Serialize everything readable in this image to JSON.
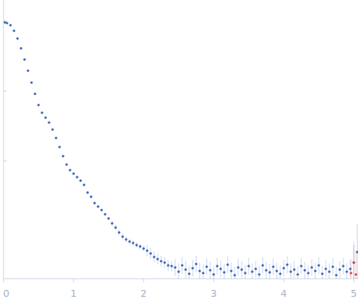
{
  "chart_data": {
    "type": "scatter",
    "xlim": [
      0,
      5.06
    ],
    "xticks": [
      0,
      1,
      2,
      3,
      4,
      5
    ],
    "ylim": [
      -0.68,
      3.3
    ],
    "yticks": [
      1,
      2,
      3
    ],
    "tick_labels": "x",
    "grid": false,
    "series": [
      {
        "color": "#3a66b8",
        "marker": "circle",
        "x": [
          0.02,
          0.05,
          0.1,
          0.15,
          0.2,
          0.25,
          0.3,
          0.35,
          0.4,
          0.45,
          0.5,
          0.55,
          0.6,
          0.65,
          0.7,
          0.75,
          0.8,
          0.85,
          0.9,
          0.95,
          1.0,
          1.05,
          1.1,
          1.15,
          1.2,
          1.25,
          1.3,
          1.35,
          1.4,
          1.45,
          1.5,
          1.55,
          1.6,
          1.65,
          1.7,
          1.75,
          1.8,
          1.85,
          1.9,
          1.95,
          2.0,
          2.05,
          2.1,
          2.15,
          2.2,
          2.25,
          2.3,
          2.35,
          2.4,
          2.45,
          2.5,
          2.55,
          2.6,
          2.65,
          2.7,
          2.75,
          2.8,
          2.85,
          2.9,
          2.95,
          3.0,
          3.05,
          3.1,
          3.15,
          3.2,
          3.25,
          3.3,
          3.35,
          3.4,
          3.45,
          3.5,
          3.55,
          3.6,
          3.65,
          3.7,
          3.75,
          3.8,
          3.85,
          3.9,
          3.95,
          4.0,
          4.05,
          4.1,
          4.15,
          4.2,
          4.25,
          4.3,
          4.35,
          4.4,
          4.45,
          4.5,
          4.55,
          4.6,
          4.65,
          4.7,
          4.75,
          4.8,
          4.85,
          4.9,
          4.95,
          5.0,
          5.05
        ],
        "values": [
          2.98,
          2.97,
          2.94,
          2.86,
          2.75,
          2.61,
          2.45,
          2.29,
          2.12,
          1.96,
          1.8,
          1.69,
          1.62,
          1.55,
          1.45,
          1.33,
          1.2,
          1.07,
          0.95,
          0.87,
          0.82,
          0.77,
          0.72,
          0.66,
          0.55,
          0.49,
          0.4,
          0.35,
          0.3,
          0.24,
          0.18,
          0.11,
          0.05,
          -0.02,
          -0.08,
          -0.12,
          -0.15,
          -0.17,
          -0.2,
          -0.22,
          -0.25,
          -0.28,
          -0.32,
          -0.37,
          -0.4,
          -0.43,
          -0.45,
          -0.49,
          -0.5,
          -0.52,
          -0.58,
          -0.49,
          -0.55,
          -0.61,
          -0.53,
          -0.47,
          -0.57,
          -0.6,
          -0.51,
          -0.56,
          -0.62,
          -0.5,
          -0.54,
          -0.59,
          -0.48,
          -0.57,
          -0.63,
          -0.52,
          -0.55,
          -0.6,
          -0.5,
          -0.58,
          -0.54,
          -0.62,
          -0.49,
          -0.56,
          -0.59,
          -0.51,
          -0.57,
          -0.61,
          -0.53,
          -0.48,
          -0.58,
          -0.55,
          -0.62,
          -0.5,
          -0.56,
          -0.6,
          -0.52,
          -0.57,
          -0.49,
          -0.61,
          -0.54,
          -0.58,
          -0.51,
          -0.63,
          -0.55,
          -0.5,
          -0.58,
          -0.54,
          -0.45,
          -0.3
        ],
        "errors": [
          0.01,
          0.01,
          0.01,
          0.01,
          0.01,
          0.01,
          0.01,
          0.01,
          0.01,
          0.01,
          0.01,
          0.01,
          0.01,
          0.01,
          0.01,
          0.01,
          0.01,
          0.01,
          0.01,
          0.01,
          0.01,
          0.02,
          0.02,
          0.02,
          0.02,
          0.02,
          0.02,
          0.02,
          0.02,
          0.02,
          0.02,
          0.04,
          0.04,
          0.04,
          0.04,
          0.04,
          0.04,
          0.04,
          0.04,
          0.04,
          0.04,
          0.08,
          0.08,
          0.08,
          0.08,
          0.08,
          0.08,
          0.08,
          0.08,
          0.12,
          0.12,
          0.12,
          0.12,
          0.12,
          0.12,
          0.12,
          0.12,
          0.12,
          0.12,
          0.12,
          0.12,
          0.12,
          0.12,
          0.12,
          0.12,
          0.12,
          0.12,
          0.12,
          0.12,
          0.12,
          0.12,
          0.12,
          0.12,
          0.12,
          0.12,
          0.12,
          0.12,
          0.12,
          0.12,
          0.12,
          0.12,
          0.12,
          0.12,
          0.12,
          0.12,
          0.12,
          0.12,
          0.12,
          0.12,
          0.12,
          0.12,
          0.12,
          0.12,
          0.12,
          0.12,
          0.12,
          0.12,
          0.12,
          0.12,
          0.12,
          0.25,
          0.4
        ]
      },
      {
        "color": "#e8413c",
        "marker": "circle",
        "x": [
          4.96,
          5.0,
          5.03
        ],
        "values": [
          -0.6,
          -0.45,
          -0.62
        ],
        "errors": [
          0.2,
          0.3,
          0.35
        ]
      }
    ]
  }
}
